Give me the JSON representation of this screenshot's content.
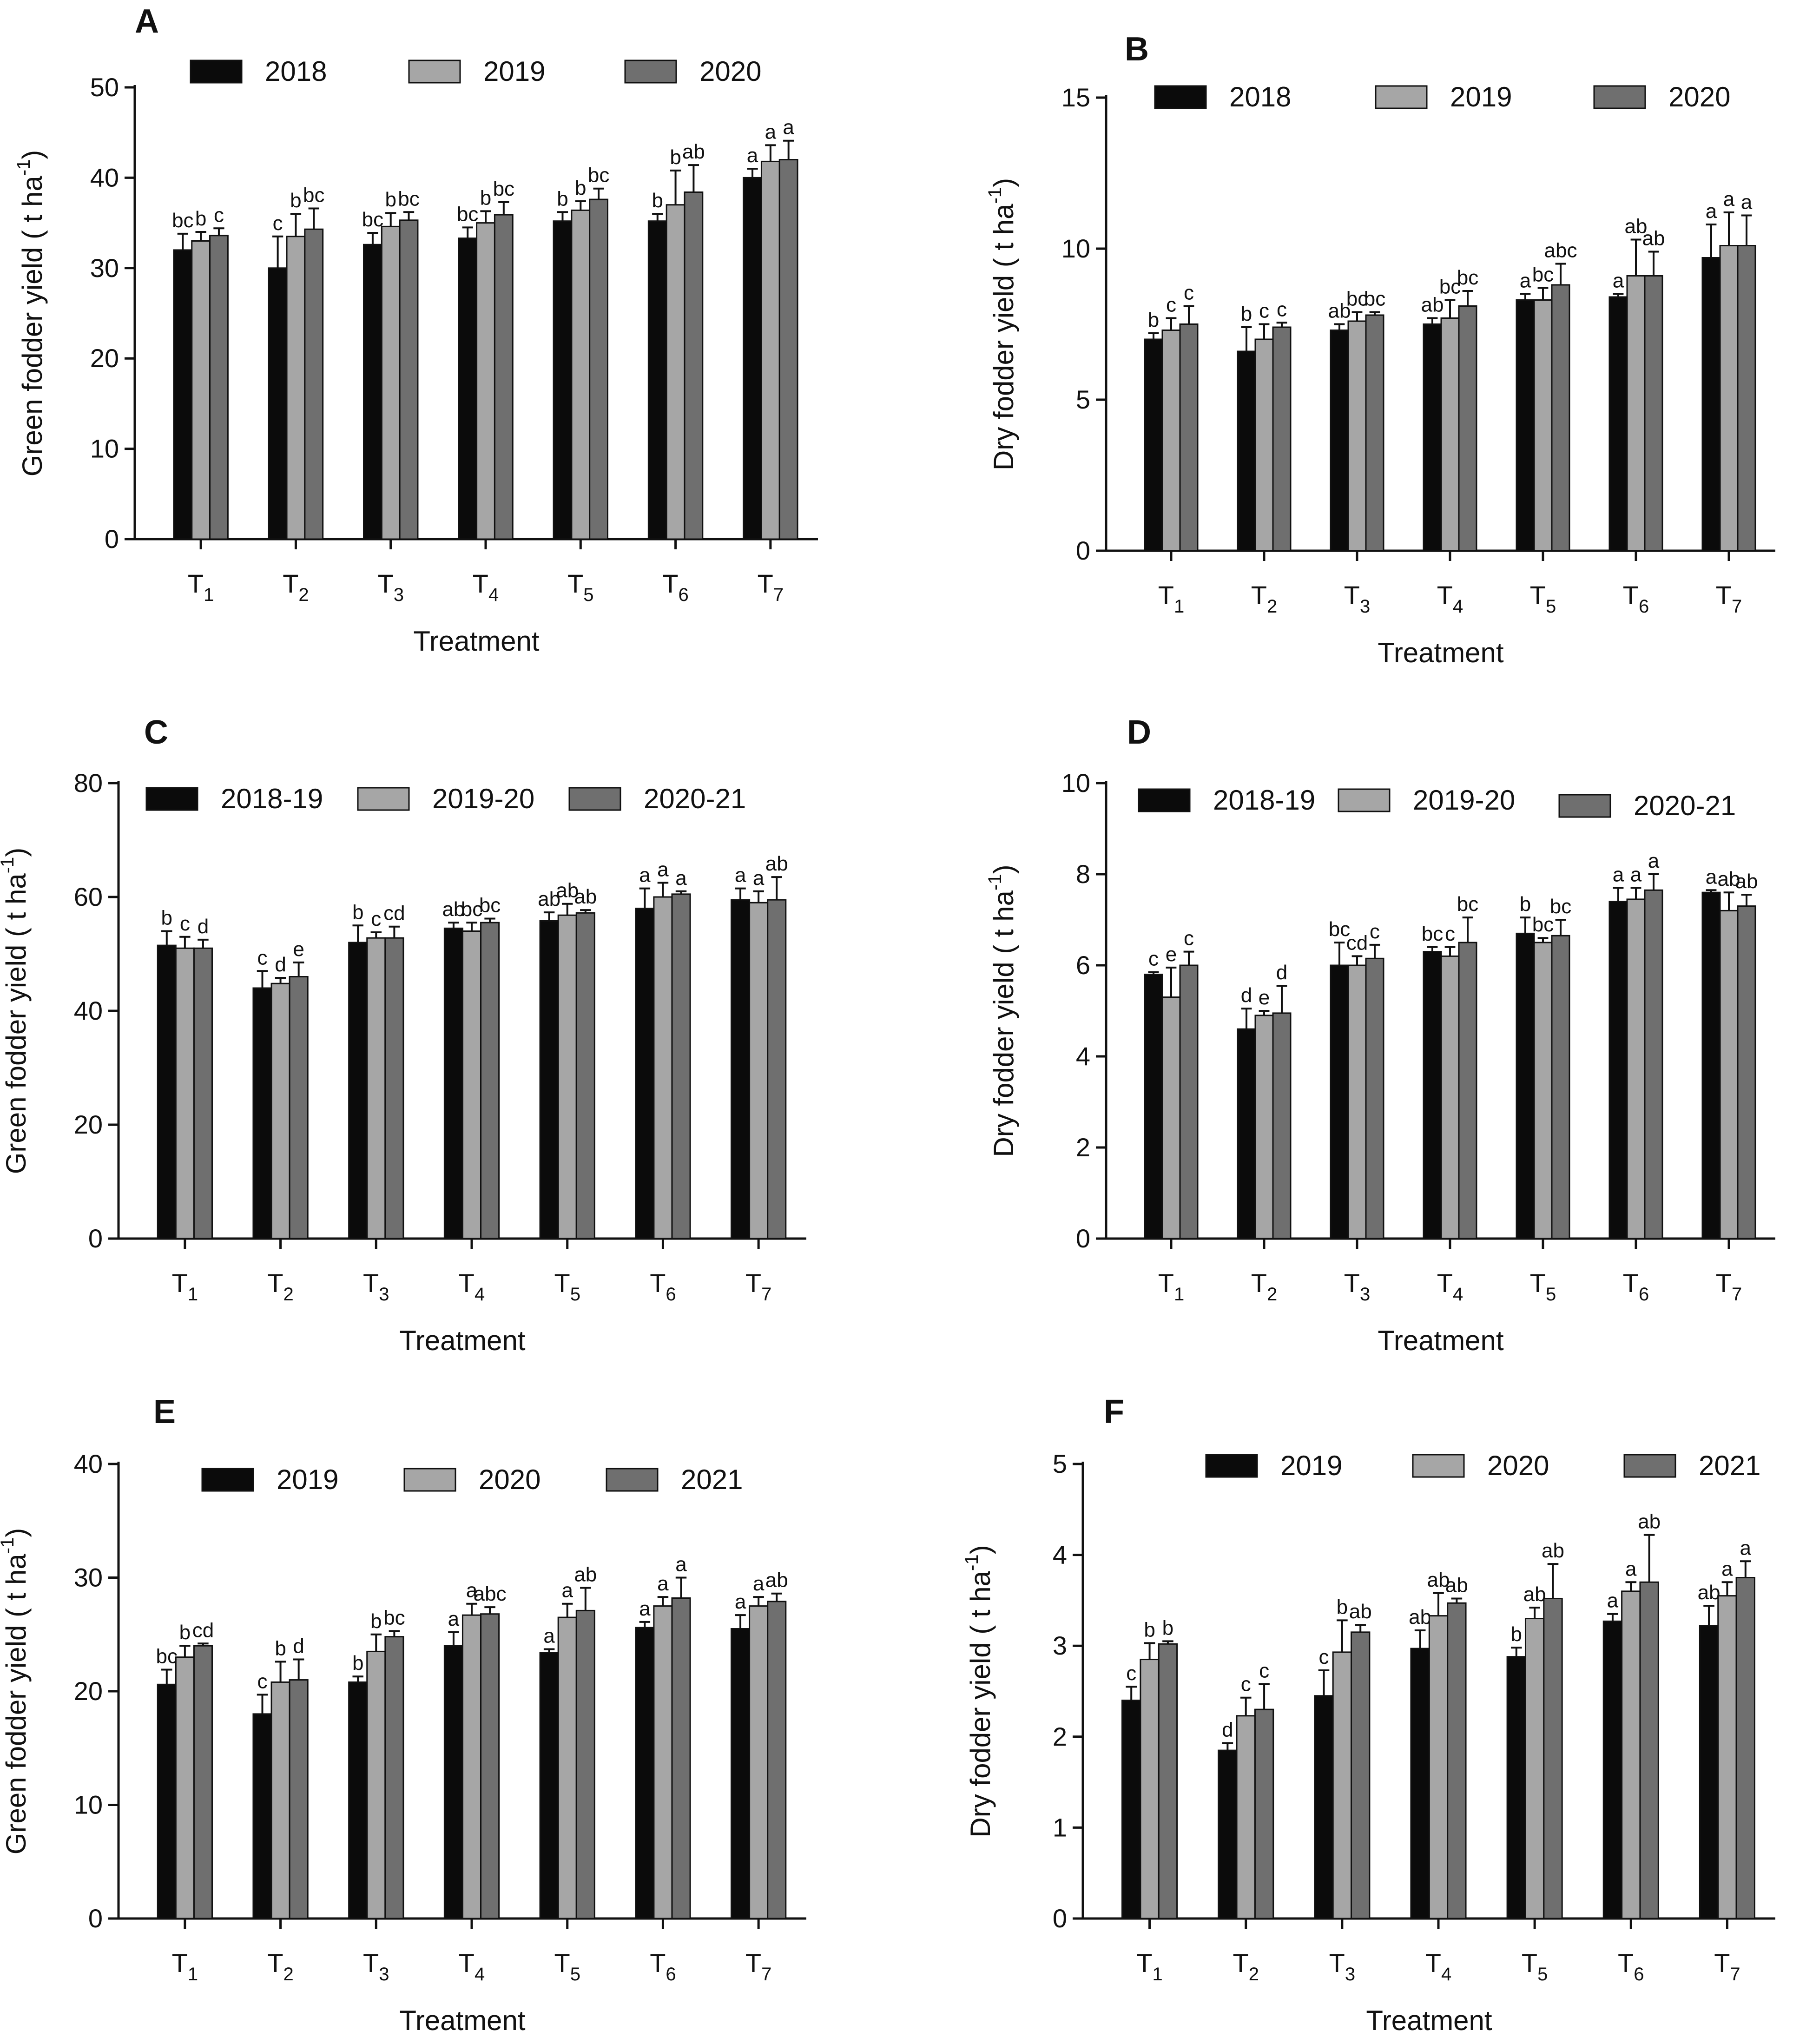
{
  "figure": {
    "series_colors": [
      "#0b0b0b",
      "#a6a6a6",
      "#6f6f6f"
    ]
  },
  "chart_data": [
    {
      "panel": "A",
      "type": "bar",
      "xlabel": "Treatment",
      "ylabel": "Green fodder yield ( t ha-1)",
      "ylabel_unit_exp": "-1",
      "categories": [
        "T1",
        "T2",
        "T3",
        "T4",
        "T5",
        "T6",
        "T7"
      ],
      "ylim": [
        0,
        50
      ],
      "yticks": [
        0,
        10,
        20,
        30,
        40,
        50
      ],
      "series": [
        {
          "name": "2018",
          "values": [
            32.0,
            30.0,
            32.6,
            33.3,
            35.2,
            35.2,
            40.0
          ],
          "errors": [
            1.8,
            3.5,
            1.3,
            1.2,
            1.0,
            0.8,
            1.0
          ],
          "letters": [
            "bc",
            "c",
            "bc",
            "bc",
            "b",
            "b",
            "a"
          ]
        },
        {
          "name": "2019",
          "values": [
            33.0,
            33.5,
            34.6,
            35.0,
            36.4,
            37.0,
            41.8
          ],
          "errors": [
            1.0,
            2.5,
            1.5,
            1.3,
            1.0,
            3.8,
            1.8
          ],
          "letters": [
            "b",
            "b",
            "b",
            "b",
            "b",
            "b",
            "a"
          ]
        },
        {
          "name": "2020",
          "values": [
            33.6,
            34.3,
            35.3,
            35.9,
            37.6,
            38.4,
            42.0
          ],
          "errors": [
            0.8,
            2.3,
            0.9,
            1.4,
            1.2,
            3.0,
            2.1
          ],
          "letters": [
            "c",
            "bc",
            "bc",
            "bc",
            "bc",
            "ab",
            "a"
          ]
        }
      ]
    },
    {
      "panel": "B",
      "type": "bar",
      "xlabel": "Treatment",
      "ylabel": "Dry fodder yield ( t ha-1)",
      "ylabel_unit_exp": "-1",
      "categories": [
        "T1",
        "T2",
        "T3",
        "T4",
        "T5",
        "T6",
        "T7"
      ],
      "ylim": [
        0,
        15
      ],
      "yticks": [
        0,
        5,
        10,
        15
      ],
      "series": [
        {
          "name": "2018",
          "values": [
            7.0,
            6.6,
            7.3,
            7.5,
            8.3,
            8.4,
            9.7
          ],
          "errors": [
            0.2,
            0.8,
            0.2,
            0.2,
            0.2,
            0.1,
            1.1
          ],
          "letters": [
            "b",
            "b",
            "ab",
            "ab",
            "a",
            "a",
            "a"
          ]
        },
        {
          "name": "2019",
          "values": [
            7.3,
            7.0,
            7.6,
            7.7,
            8.3,
            9.1,
            10.1
          ],
          "errors": [
            0.4,
            0.5,
            0.3,
            0.6,
            0.4,
            1.2,
            1.1
          ],
          "letters": [
            "c",
            "c",
            "bc",
            "bc",
            "bc",
            "ab",
            "a"
          ]
        },
        {
          "name": "2020",
          "values": [
            7.5,
            7.4,
            7.8,
            8.1,
            8.8,
            9.1,
            10.1
          ],
          "errors": [
            0.6,
            0.15,
            0.1,
            0.5,
            0.7,
            0.8,
            1.0
          ],
          "letters": [
            "c",
            "c",
            "bc",
            "bc",
            "abc",
            "ab",
            "a"
          ]
        }
      ]
    },
    {
      "panel": "C",
      "type": "bar",
      "xlabel": "Treatment",
      "ylabel": "Green fodder yield ( t ha-1)",
      "ylabel_unit_exp": "-1",
      "categories": [
        "T1",
        "T2",
        "T3",
        "T4",
        "T5",
        "T6",
        "T7"
      ],
      "ylim": [
        0,
        80
      ],
      "yticks": [
        0,
        20,
        40,
        60,
        80
      ],
      "series": [
        {
          "name": "2018-19",
          "values": [
            51.5,
            44.0,
            52.0,
            54.5,
            55.8,
            58.0,
            59.5
          ],
          "errors": [
            2.5,
            3.0,
            3.0,
            1.0,
            1.5,
            3.5,
            2.0
          ],
          "letters": [
            "b",
            "c",
            "b",
            "ab",
            "ab",
            "a",
            "a"
          ]
        },
        {
          "name": "2019-20",
          "values": [
            51.0,
            44.8,
            52.8,
            54.0,
            56.8,
            60.0,
            59.0
          ],
          "errors": [
            2.0,
            1.0,
            1.0,
            1.5,
            2.0,
            2.5,
            2.0
          ],
          "letters": [
            "c",
            "d",
            "c",
            "bc",
            "ab",
            "a",
            "a"
          ]
        },
        {
          "name": "2020-21",
          "values": [
            51.0,
            46.0,
            52.8,
            55.5,
            57.2,
            60.5,
            59.5
          ],
          "errors": [
            1.5,
            2.5,
            2.0,
            0.7,
            0.5,
            0.5,
            4.0
          ],
          "letters": [
            "d",
            "e",
            "cd",
            "bc",
            "ab",
            "a",
            "ab"
          ]
        }
      ]
    },
    {
      "panel": "D",
      "type": "bar",
      "xlabel": "Treatment",
      "ylabel": "Dry fodder yield ( t ha-1)",
      "ylabel_unit_exp": "-1",
      "categories": [
        "T1",
        "T2",
        "T3",
        "T4",
        "T5",
        "T6",
        "T7"
      ],
      "ylim": [
        0,
        10
      ],
      "yticks": [
        0,
        2,
        4,
        6,
        8,
        10
      ],
      "series": [
        {
          "name": "2018-19",
          "values": [
            5.8,
            4.6,
            6.0,
            6.3,
            6.7,
            7.4,
            7.6
          ],
          "errors": [
            0.05,
            0.45,
            0.5,
            0.1,
            0.35,
            0.3,
            0.05
          ],
          "letters": [
            "c",
            "d",
            "bc",
            "bc",
            "b",
            "a",
            "a"
          ]
        },
        {
          "name": "2019-20",
          "values": [
            5.3,
            4.9,
            6.0,
            6.2,
            6.5,
            7.45,
            7.2
          ],
          "errors": [
            0.65,
            0.1,
            0.2,
            0.2,
            0.1,
            0.25,
            0.4
          ],
          "letters": [
            "e",
            "e",
            "cd",
            "c",
            "bc",
            "a",
            "ab"
          ]
        },
        {
          "name": "2020-21",
          "values": [
            6.0,
            4.95,
            6.15,
            6.5,
            6.65,
            7.65,
            7.3
          ],
          "errors": [
            0.3,
            0.6,
            0.3,
            0.55,
            0.35,
            0.35,
            0.25
          ],
          "letters": [
            "c",
            "d",
            "c",
            "bc",
            "bc",
            "a",
            "ab"
          ]
        }
      ]
    },
    {
      "panel": "E",
      "type": "bar",
      "xlabel": "Treatment",
      "ylabel": "Green fodder yield ( t ha-1)",
      "ylabel_unit_exp": "-1",
      "categories": [
        "T1",
        "T2",
        "T3",
        "T4",
        "T5",
        "T6",
        "T7"
      ],
      "ylim": [
        0,
        40
      ],
      "yticks": [
        0,
        10,
        20,
        30,
        40
      ],
      "series": [
        {
          "name": "2019",
          "values": [
            20.6,
            18.0,
            20.8,
            24.0,
            23.4,
            25.6,
            25.5
          ],
          "errors": [
            1.3,
            1.7,
            0.5,
            1.2,
            0.3,
            0.5,
            1.2
          ],
          "letters": [
            "bc",
            "c",
            "b",
            "a",
            "a",
            "a",
            "a"
          ]
        },
        {
          "name": "2020",
          "values": [
            23.0,
            20.8,
            23.5,
            26.7,
            26.5,
            27.5,
            27.5
          ],
          "errors": [
            1.0,
            1.8,
            1.5,
            1.0,
            1.2,
            0.8,
            0.8
          ],
          "letters": [
            "b",
            "b",
            "b",
            "a",
            "a",
            "a",
            "a"
          ]
        },
        {
          "name": "2021",
          "values": [
            24.0,
            21.0,
            24.8,
            26.8,
            27.1,
            28.2,
            27.9
          ],
          "errors": [
            0.2,
            1.8,
            0.5,
            0.6,
            2.0,
            1.8,
            0.7
          ],
          "letters": [
            "cd",
            "d",
            "bc",
            "abc",
            "ab",
            "a",
            "ab"
          ]
        }
      ]
    },
    {
      "panel": "F",
      "type": "bar",
      "xlabel": "Treatment",
      "ylabel": "Dry fodder yield ( t ha-1)",
      "ylabel_unit_exp": "-1",
      "categories": [
        "T1",
        "T2",
        "T3",
        "T4",
        "T5",
        "T6",
        "T7"
      ],
      "ylim": [
        0,
        5
      ],
      "yticks": [
        0,
        1,
        2,
        3,
        4,
        5
      ],
      "series": [
        {
          "name": "2019",
          "values": [
            2.4,
            1.85,
            2.45,
            2.97,
            2.88,
            3.27,
            3.22
          ],
          "errors": [
            0.15,
            0.08,
            0.28,
            0.2,
            0.1,
            0.08,
            0.22
          ],
          "letters": [
            "c",
            "d",
            "c",
            "ab",
            "b",
            "a",
            "ab"
          ]
        },
        {
          "name": "2020",
          "values": [
            2.85,
            2.23,
            2.93,
            3.33,
            3.3,
            3.6,
            3.55
          ],
          "errors": [
            0.18,
            0.2,
            0.35,
            0.25,
            0.12,
            0.1,
            0.15
          ],
          "letters": [
            "b",
            "c",
            "b",
            "ab",
            "ab",
            "a",
            "a"
          ]
        },
        {
          "name": "2021",
          "values": [
            3.02,
            2.3,
            3.15,
            3.47,
            3.52,
            3.7,
            3.75
          ],
          "errors": [
            0.03,
            0.28,
            0.08,
            0.05,
            0.38,
            0.52,
            0.18
          ],
          "letters": [
            "b",
            "c",
            "ab",
            "ab",
            "ab",
            "ab",
            "a"
          ]
        }
      ]
    }
  ]
}
